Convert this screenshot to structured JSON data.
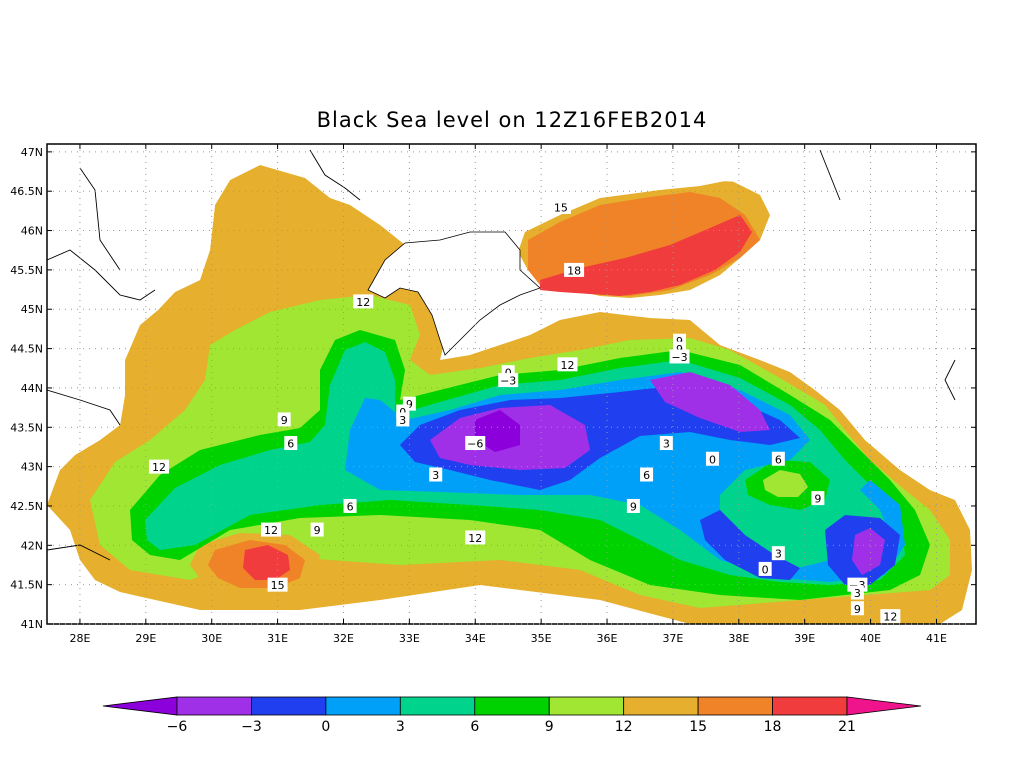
{
  "title": "Black Sea level on 12Z16FEB2014",
  "map": {
    "lat_ticks": [
      "47N",
      "46.5N",
      "46N",
      "45.5N",
      "45N",
      "44.5N",
      "44N",
      "43.5N",
      "43N",
      "42.5N",
      "42N",
      "41.5N",
      "41N"
    ],
    "lon_ticks": [
      "28E",
      "29E",
      "30E",
      "31E",
      "32E",
      "33E",
      "34E",
      "35E",
      "36E",
      "37E",
      "38E",
      "39E",
      "40E",
      "41E"
    ],
    "lat_values": [
      47,
      46.5,
      46,
      45.5,
      45,
      44.5,
      44,
      43.5,
      43,
      42.5,
      42,
      41.5,
      41
    ],
    "lon_values": [
      28,
      29,
      30,
      31,
      32,
      33,
      34,
      35,
      36,
      37,
      38,
      39,
      40,
      41
    ],
    "lat_range": [
      41,
      47.1
    ],
    "lon_range": [
      27.5,
      41.6
    ],
    "grid": "dotted",
    "contour_labels": [
      {
        "text": "15",
        "lon": 35.3,
        "lat": 46.3
      },
      {
        "text": "18",
        "lon": 35.5,
        "lat": 45.5
      },
      {
        "text": "12",
        "lon": 32.3,
        "lat": 45.1
      },
      {
        "text": "0",
        "lon": 34.5,
        "lat": 44.2
      },
      {
        "text": "−3",
        "lon": 34.5,
        "lat": 44.1
      },
      {
        "text": "12",
        "lon": 35.4,
        "lat": 44.3
      },
      {
        "text": "9",
        "lon": 37.1,
        "lat": 44.6
      },
      {
        "text": "9",
        "lon": 37.1,
        "lat": 44.5
      },
      {
        "text": "−3",
        "lon": 37.1,
        "lat": 44.4
      },
      {
        "text": "9",
        "lon": 33.0,
        "lat": 43.8
      },
      {
        "text": "0",
        "lon": 32.9,
        "lat": 43.7
      },
      {
        "text": "3",
        "lon": 32.9,
        "lat": 43.6
      },
      {
        "text": "9",
        "lon": 31.1,
        "lat": 43.6
      },
      {
        "text": "6",
        "lon": 31.2,
        "lat": 43.3
      },
      {
        "text": "−6",
        "lon": 34.0,
        "lat": 43.3
      },
      {
        "text": "3",
        "lon": 36.9,
        "lat": 43.3
      },
      {
        "text": "0",
        "lon": 37.6,
        "lat": 43.1
      },
      {
        "text": "6",
        "lon": 38.6,
        "lat": 43.1
      },
      {
        "text": "12",
        "lon": 29.2,
        "lat": 43.0
      },
      {
        "text": "3",
        "lon": 33.4,
        "lat": 42.9
      },
      {
        "text": "6",
        "lon": 36.6,
        "lat": 42.9
      },
      {
        "text": "9",
        "lon": 39.2,
        "lat": 42.6
      },
      {
        "text": "6",
        "lon": 32.1,
        "lat": 42.5
      },
      {
        "text": "9",
        "lon": 36.4,
        "lat": 42.5
      },
      {
        "text": "12",
        "lon": 30.9,
        "lat": 42.2
      },
      {
        "text": "9",
        "lon": 31.6,
        "lat": 42.2
      },
      {
        "text": "12",
        "lon": 34.0,
        "lat": 42.1
      },
      {
        "text": "3",
        "lon": 38.6,
        "lat": 41.9
      },
      {
        "text": "0",
        "lon": 38.4,
        "lat": 41.7
      },
      {
        "text": "−3",
        "lon": 39.8,
        "lat": 41.5
      },
      {
        "text": "3",
        "lon": 39.8,
        "lat": 41.4
      },
      {
        "text": "9",
        "lon": 39.8,
        "lat": 41.2
      },
      {
        "text": "12",
        "lon": 40.3,
        "lat": 41.1
      },
      {
        "text": "15",
        "lon": 31.0,
        "lat": 41.5
      }
    ]
  },
  "colorbar": {
    "labels": [
      "−6",
      "−3",
      "0",
      "3",
      "6",
      "9",
      "12",
      "15",
      "18",
      "21"
    ],
    "values": [
      -6,
      -3,
      0,
      3,
      6,
      9,
      12,
      15,
      18,
      21
    ],
    "colors": [
      "#8c00dc",
      "#a030e8",
      "#2040f0",
      "#00a0f8",
      "#00d48c",
      "#00d200",
      "#a0e632",
      "#e6af2d",
      "#f08228",
      "#f03c3c",
      "#f0148c"
    ]
  }
}
